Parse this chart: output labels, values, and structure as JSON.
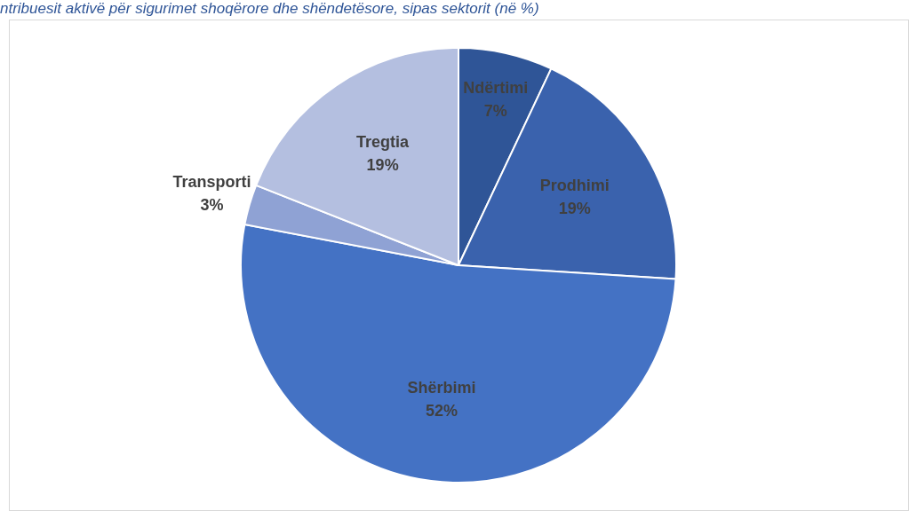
{
  "chart_data": {
    "type": "pie",
    "title": "ntribuesit aktivë për sigurimet shoqërore dhe shëndetësore, sipas sektorit (në %)",
    "categories": [
      "Ndërtimi",
      "Prodhimi",
      "Shërbimi",
      "Transporti",
      "Tregtia"
    ],
    "values": [
      7,
      19,
      52,
      3,
      19
    ],
    "value_labels": [
      "7%",
      "19%",
      "52%",
      "3%",
      "19%"
    ],
    "colors": [
      "#2f5597",
      "#3a62ad",
      "#4472c4",
      "#8fa2d4",
      "#b4bfe0"
    ],
    "legend": false
  }
}
